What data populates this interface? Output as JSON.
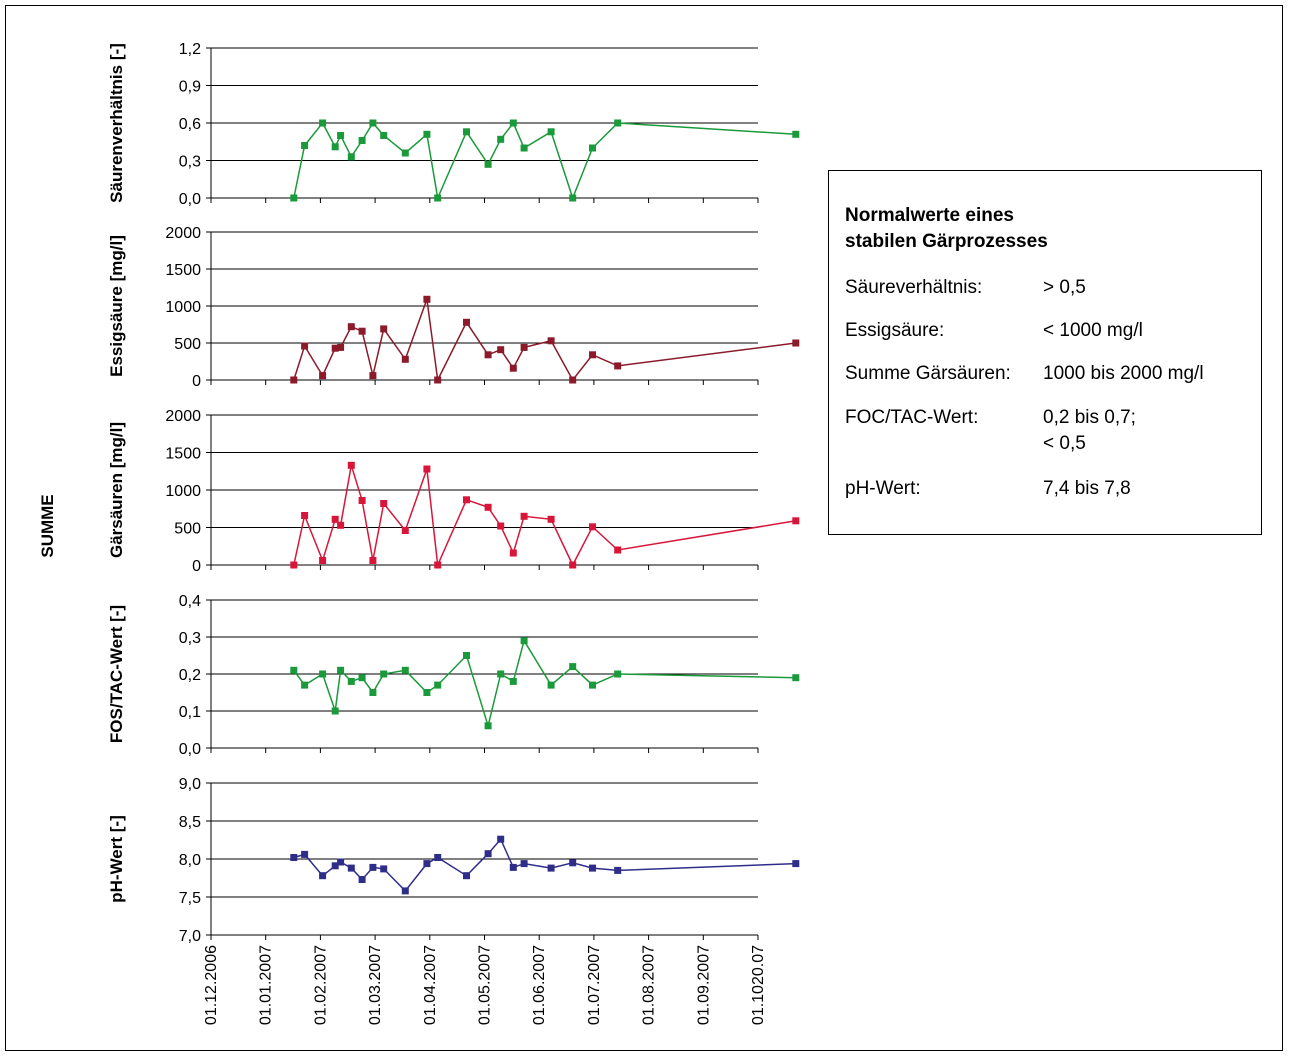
{
  "side_label": "SUMME",
  "x_ticks": [
    "01.12.2006",
    "01.01.2007",
    "01.02.2007",
    "01.03.2007",
    "01.04.2007",
    "01.05.2007",
    "01.06.2007",
    "01.07.2007",
    "01.08.2007",
    "01.09.2007",
    "01.1020.07"
  ],
  "legend": {
    "title_line1": "Normalwerte eines",
    "title_line2": "stabilen Gärprozesses",
    "rows": [
      {
        "label": "Säureverhältnis:",
        "value": "> 0,5"
      },
      {
        "label": "Essigsäure:",
        "value": "< 1000 mg/l"
      },
      {
        "label": "Summe Gärsäuren:",
        "value": "1000 bis 2000 mg/l"
      },
      {
        "label": "FOC/TAC-Wert:",
        "value": "0,2 bis 0,7;",
        "value2": "< 0,5"
      },
      {
        "label": "pH-Wert:",
        "value": "7,4 bis 7,8"
      }
    ]
  },
  "chart_data": [
    {
      "type": "line",
      "ylabel": "Säurenverhältnis [-]",
      "ylim": [
        0,
        1.2
      ],
      "y_ticks": [
        "0,0",
        "0,3",
        "0,6",
        "0,9",
        "1,2"
      ],
      "color": "#1a9a3a",
      "x": [
        "2007-01-16",
        "2007-01-22",
        "2007-02-01",
        "2007-02-08",
        "2007-02-11",
        "2007-02-17",
        "2007-02-23",
        "2007-03-01",
        "2007-03-07",
        "2007-03-19",
        "2007-03-31",
        "2007-04-06",
        "2007-04-22",
        "2007-05-04",
        "2007-05-11",
        "2007-05-18",
        "2007-05-24",
        "2007-06-08",
        "2007-06-20",
        "2007-07-01",
        "2007-07-15",
        "2007-10-22"
      ],
      "values": [
        0.0,
        0.42,
        0.6,
        0.41,
        0.5,
        0.33,
        0.46,
        0.6,
        0.5,
        0.36,
        0.51,
        0.0,
        0.53,
        0.27,
        0.47,
        0.6,
        0.4,
        0.53,
        0.0,
        0.4,
        0.6,
        0.51
      ]
    },
    {
      "type": "line",
      "ylabel": "Essigsäure [mg/l]",
      "ylim": [
        0,
        2000
      ],
      "y_ticks": [
        "0",
        "500",
        "1000",
        "1500",
        "2000"
      ],
      "color": "#8b1a2b",
      "x": [
        "2007-01-16",
        "2007-01-22",
        "2007-02-01",
        "2007-02-08",
        "2007-02-11",
        "2007-02-17",
        "2007-02-23",
        "2007-03-01",
        "2007-03-07",
        "2007-03-19",
        "2007-03-31",
        "2007-04-06",
        "2007-04-22",
        "2007-05-04",
        "2007-05-11",
        "2007-05-18",
        "2007-05-24",
        "2007-06-08",
        "2007-06-20",
        "2007-07-01",
        "2007-07-15",
        "2007-10-22"
      ],
      "values": [
        0,
        460,
        60,
        430,
        440,
        720,
        660,
        60,
        690,
        280,
        1090,
        0,
        780,
        340,
        410,
        160,
        440,
        530,
        0,
        340,
        190,
        500
      ]
    },
    {
      "type": "line",
      "ylabel": "Gärsäuren [mg/l]",
      "ylim": [
        0,
        2000
      ],
      "y_ticks": [
        "0",
        "500",
        "1000",
        "1500",
        "2000"
      ],
      "color": "#d8163a",
      "x": [
        "2007-01-16",
        "2007-01-22",
        "2007-02-01",
        "2007-02-08",
        "2007-02-11",
        "2007-02-17",
        "2007-02-23",
        "2007-03-01",
        "2007-03-07",
        "2007-03-19",
        "2007-03-31",
        "2007-04-06",
        "2007-04-22",
        "2007-05-04",
        "2007-05-11",
        "2007-05-18",
        "2007-05-24",
        "2007-06-08",
        "2007-06-20",
        "2007-07-01",
        "2007-07-15",
        "2007-10-22"
      ],
      "values": [
        0,
        660,
        60,
        610,
        530,
        1330,
        860,
        60,
        820,
        460,
        1280,
        0,
        870,
        770,
        520,
        160,
        650,
        610,
        0,
        510,
        200,
        590
      ]
    },
    {
      "type": "line",
      "ylabel": "FOS/TAC-Wert [-]",
      "ylim": [
        0,
        0.4
      ],
      "y_ticks": [
        "0,0",
        "0,1",
        "0,2",
        "0,3",
        "0,4"
      ],
      "color": "#1a9a3a",
      "x": [
        "2007-01-16",
        "2007-01-22",
        "2007-02-01",
        "2007-02-08",
        "2007-02-11",
        "2007-02-17",
        "2007-02-23",
        "2007-03-01",
        "2007-03-07",
        "2007-03-19",
        "2007-03-31",
        "2007-04-06",
        "2007-04-22",
        "2007-05-04",
        "2007-05-11",
        "2007-05-18",
        "2007-05-24",
        "2007-06-08",
        "2007-06-20",
        "2007-07-01",
        "2007-07-15",
        "2007-10-22"
      ],
      "values": [
        0.21,
        0.17,
        0.2,
        0.1,
        0.21,
        0.18,
        0.19,
        0.15,
        0.2,
        0.21,
        0.15,
        0.17,
        0.25,
        0.06,
        0.2,
        0.18,
        0.29,
        0.17,
        0.22,
        0.17,
        0.2,
        0.19
      ]
    },
    {
      "type": "line",
      "ylabel": "pH-Wert [-]",
      "ylim": [
        7.0,
        9.0
      ],
      "y_ticks": [
        "7,0",
        "7,5",
        "8,0",
        "8,5",
        "9,0"
      ],
      "color": "#2e2d8a",
      "x": [
        "2007-01-16",
        "2007-01-22",
        "2007-02-01",
        "2007-02-08",
        "2007-02-11",
        "2007-02-17",
        "2007-02-23",
        "2007-03-01",
        "2007-03-07",
        "2007-03-19",
        "2007-03-31",
        "2007-04-06",
        "2007-04-22",
        "2007-05-04",
        "2007-05-11",
        "2007-05-18",
        "2007-05-24",
        "2007-06-08",
        "2007-06-20",
        "2007-07-01",
        "2007-07-15",
        "2007-10-22"
      ],
      "values": [
        8.02,
        8.06,
        7.78,
        7.91,
        7.96,
        7.88,
        7.73,
        7.89,
        7.87,
        7.58,
        7.94,
        8.02,
        7.78,
        8.07,
        8.26,
        7.89,
        7.94,
        7.88,
        7.95,
        7.88,
        7.85,
        7.94
      ]
    }
  ]
}
